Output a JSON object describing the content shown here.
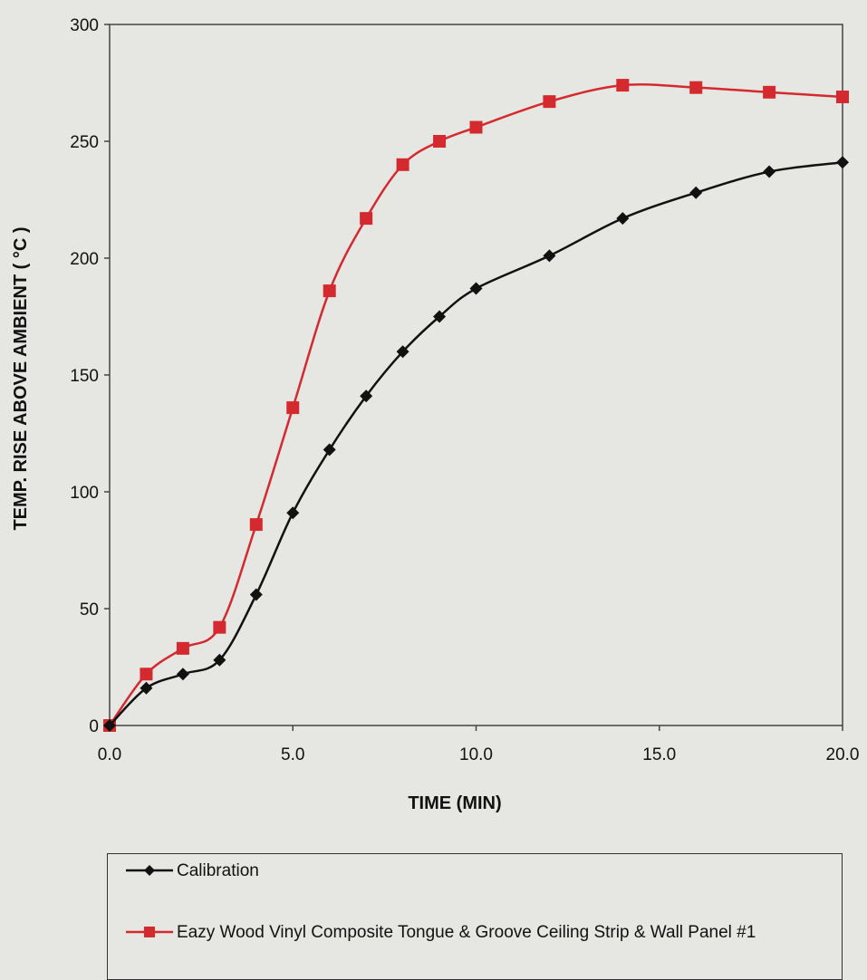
{
  "chart_data": {
    "type": "line",
    "xlabel": "TIME (MIN)",
    "ylabel": "TEMP. RISE ABOVE AMBIENT ( °C )",
    "xlim": [
      0,
      20
    ],
    "ylim": [
      0,
      300
    ],
    "x_ticks": [
      "0.0",
      "5.0",
      "10.0",
      "15.0",
      "20.0"
    ],
    "y_ticks": [
      "0",
      "50",
      "100",
      "150",
      "200",
      "250",
      "300"
    ],
    "grid": false,
    "legend_position": "bottom",
    "series": [
      {
        "name": "Calibration",
        "color": "#111111",
        "marker": "diamond",
        "x": [
          0,
          1,
          2,
          3,
          4,
          5,
          6,
          7,
          8,
          9,
          10,
          12,
          14,
          16,
          18,
          20
        ],
        "y": [
          0,
          16,
          22,
          28,
          56,
          91,
          118,
          141,
          160,
          175,
          187,
          201,
          217,
          228,
          237,
          241
        ]
      },
      {
        "name": "Eazy Wood Vinyl Composite Tongue & Groove Ceiling Strip & Wall Panel #1",
        "color": "#d42a2f",
        "marker": "square",
        "x": [
          0,
          1,
          2,
          3,
          4,
          5,
          6,
          7,
          8,
          9,
          10,
          12,
          14,
          16,
          18,
          20
        ],
        "y": [
          0,
          22,
          33,
          42,
          86,
          136,
          186,
          217,
          240,
          250,
          256,
          267,
          274,
          273,
          271,
          269
        ]
      }
    ]
  }
}
